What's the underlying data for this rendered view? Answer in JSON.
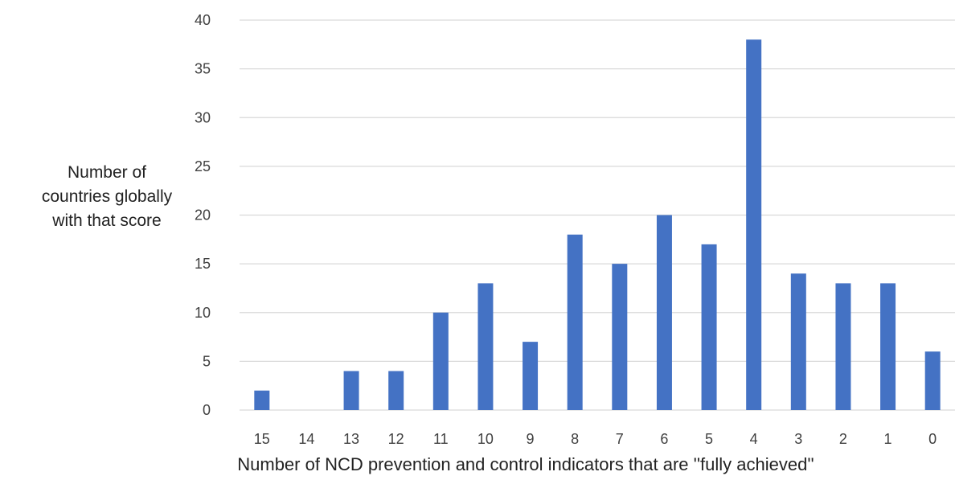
{
  "chart_data": {
    "type": "bar",
    "categories": [
      "15",
      "14",
      "13",
      "12",
      "11",
      "10",
      "9",
      "8",
      "7",
      "6",
      "5",
      "4",
      "3",
      "2",
      "1",
      "0"
    ],
    "values": [
      2,
      0,
      4,
      4,
      10,
      13,
      7,
      18,
      15,
      20,
      17,
      38,
      14,
      13,
      13,
      6
    ],
    "ylabel_lines": [
      "Number of",
      "countries globally",
      "with that score"
    ],
    "xlabel": "Number of NCD prevention and control indicators that are ''fully achieved''",
    "ylim": [
      0,
      40
    ],
    "yticks": [
      0,
      5,
      10,
      15,
      20,
      25,
      30,
      35,
      40
    ],
    "grid": true,
    "bar_color": "#4472C4",
    "grid_color": "#d9d9d9"
  }
}
